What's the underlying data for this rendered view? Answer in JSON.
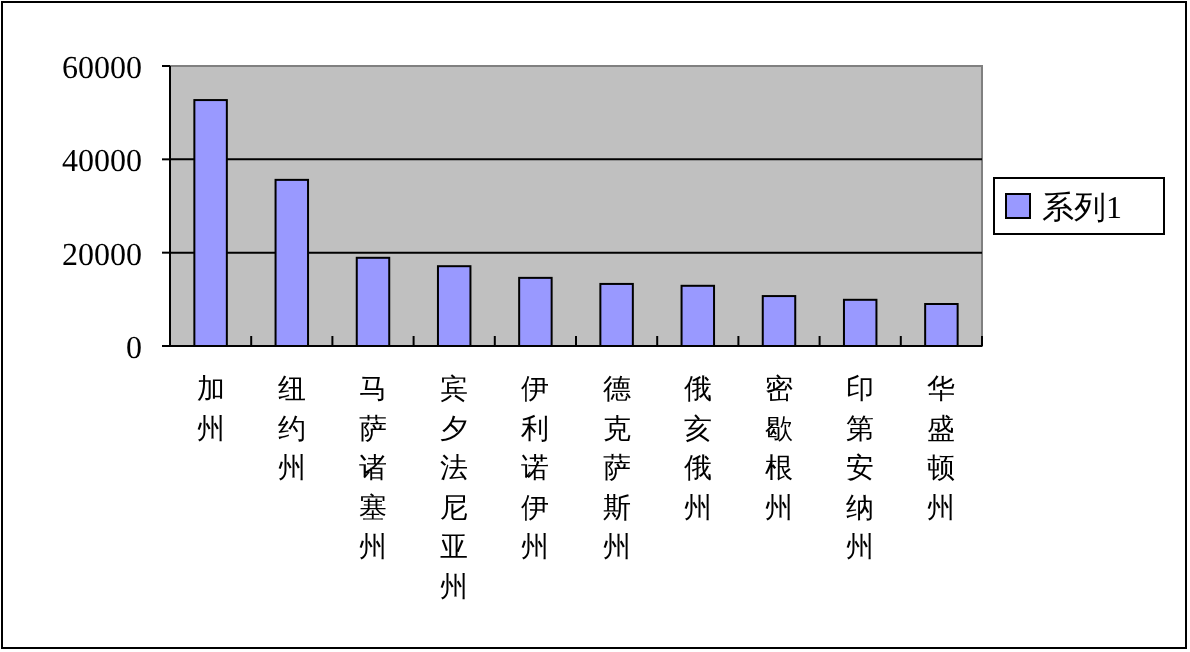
{
  "chart_data": {
    "type": "bar",
    "categories": [
      "加州",
      "纽约州",
      "马萨诸塞州",
      "宾夕法尼亚州",
      "伊利诺伊州",
      "德克萨斯州",
      "俄亥俄州",
      "密歇根州",
      "印第安纳州",
      "华盛顿州"
    ],
    "series": [
      {
        "name": "系列1",
        "color": "#9999ff",
        "values": [
          52700,
          35600,
          18900,
          17100,
          14600,
          13300,
          12900,
          10700,
          9900,
          9000
        ]
      }
    ],
    "ylim": [
      0,
      60000
    ],
    "yticks": [
      0,
      20000,
      40000,
      60000
    ],
    "grid": "y",
    "legend": "right"
  }
}
